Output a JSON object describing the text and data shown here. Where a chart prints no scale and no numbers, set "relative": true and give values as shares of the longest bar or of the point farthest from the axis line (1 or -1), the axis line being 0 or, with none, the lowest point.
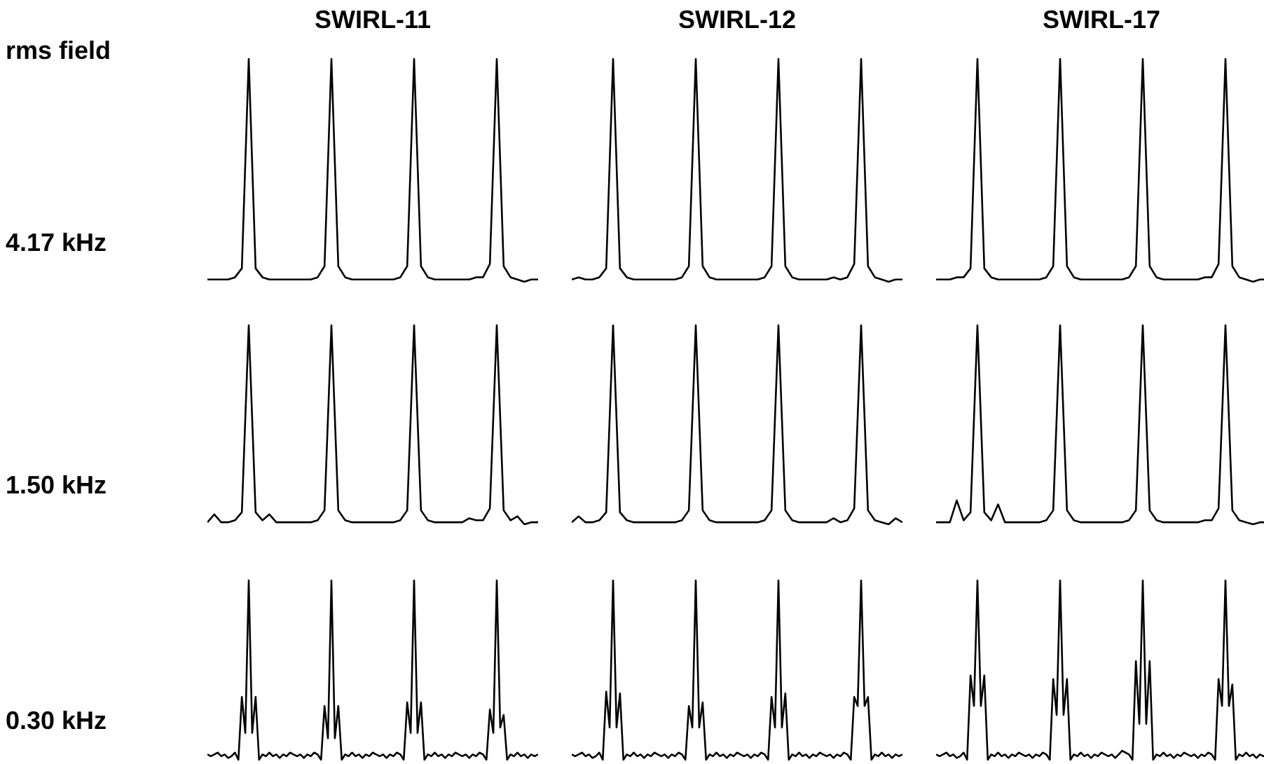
{
  "chart_data": [
    {
      "type": "line",
      "title": "SWIRL-11",
      "ylabel": "4.17 kHz",
      "annotations": [
        "rms field"
      ],
      "relative": true,
      "tick_labels": false,
      "color": "#000000",
      "categories": [
        null,
        null,
        null,
        null,
        null,
        null,
        null,
        null,
        null,
        null,
        null,
        null,
        null,
        null,
        null,
        null,
        null,
        null,
        null,
        null,
        null,
        null,
        null,
        null,
        null,
        null,
        null,
        null,
        null,
        null,
        null,
        null,
        null,
        null,
        null,
        null,
        null,
        null,
        null,
        null,
        null,
        null,
        null,
        null,
        null,
        null,
        null,
        null,
        null
      ],
      "values": [
        0.01,
        0.01,
        0.01,
        0.01,
        0.02,
        0.06,
        1,
        0.06,
        0.02,
        0.01,
        0.01,
        0.01,
        0.01,
        0.01,
        0.01,
        0.01,
        0.02,
        0.07,
        1,
        0.07,
        0.02,
        0.01,
        0.01,
        0.01,
        0.01,
        0.01,
        0.01,
        0.01,
        0.02,
        0.07,
        1,
        0.07,
        0.02,
        0.01,
        0.01,
        0.01,
        0.01,
        0.01,
        0.01,
        0.02,
        0.02,
        0.08,
        1,
        0.07,
        0.02,
        0.01,
        0,
        0.01,
        0.01
      ]
    },
    {
      "type": "line",
      "title": "SWIRL-12",
      "relative": true,
      "tick_labels": false,
      "color": "#000000",
      "categories": [
        null,
        null,
        null,
        null,
        null,
        null,
        null,
        null,
        null,
        null,
        null,
        null,
        null,
        null,
        null,
        null,
        null,
        null,
        null,
        null,
        null,
        null,
        null,
        null,
        null,
        null,
        null,
        null,
        null,
        null,
        null,
        null,
        null,
        null,
        null,
        null,
        null,
        null,
        null,
        null,
        null,
        null,
        null,
        null,
        null,
        null,
        null,
        null,
        null
      ],
      "values": [
        0.01,
        0.02,
        0.01,
        0.01,
        0.02,
        0.06,
        1,
        0.06,
        0.02,
        0.01,
        0.01,
        0.01,
        0.01,
        0.01,
        0.01,
        0.01,
        0.02,
        0.07,
        1,
        0.07,
        0.02,
        0.01,
        0.01,
        0.01,
        0.01,
        0.01,
        0.01,
        0.01,
        0.02,
        0.07,
        1,
        0.07,
        0.02,
        0.01,
        0.01,
        0.01,
        0.01,
        0.01,
        0.02,
        0.01,
        0.02,
        0.08,
        1,
        0.07,
        0.02,
        0.01,
        0,
        0.01,
        0.01
      ]
    },
    {
      "type": "line",
      "title": "SWIRL-17",
      "relative": true,
      "tick_labels": false,
      "color": "#000000",
      "categories": [
        null,
        null,
        null,
        null,
        null,
        null,
        null,
        null,
        null,
        null,
        null,
        null,
        null,
        null,
        null,
        null,
        null,
        null,
        null,
        null,
        null,
        null,
        null,
        null,
        null,
        null,
        null,
        null,
        null,
        null,
        null,
        null,
        null,
        null,
        null,
        null,
        null,
        null,
        null,
        null,
        null,
        null,
        null,
        null,
        null,
        null,
        null,
        null,
        null
      ],
      "values": [
        0.01,
        0.01,
        0.01,
        0.02,
        0.02,
        0.06,
        1,
        0.06,
        0.02,
        0.01,
        0.01,
        0.01,
        0.01,
        0.01,
        0.01,
        0.01,
        0.02,
        0.07,
        1,
        0.07,
        0.02,
        0.01,
        0.01,
        0.01,
        0.01,
        0.01,
        0.01,
        0.01,
        0.02,
        0.07,
        1,
        0.07,
        0.02,
        0.01,
        0.01,
        0.01,
        0.01,
        0.01,
        0.01,
        0.02,
        0.02,
        0.08,
        1,
        0.07,
        0.02,
        0.01,
        0,
        0.01,
        0.01
      ]
    },
    {
      "type": "line",
      "ylabel": "1.50 kHz",
      "relative": true,
      "tick_labels": false,
      "color": "#000000",
      "categories": [
        null,
        null,
        null,
        null,
        null,
        null,
        null,
        null,
        null,
        null,
        null,
        null,
        null,
        null,
        null,
        null,
        null,
        null,
        null,
        null,
        null,
        null,
        null,
        null,
        null,
        null,
        null,
        null,
        null,
        null,
        null,
        null,
        null,
        null,
        null,
        null,
        null,
        null,
        null,
        null,
        null,
        null,
        null,
        null,
        null,
        null,
        null,
        null,
        null
      ],
      "values": [
        0.01,
        0.05,
        0.01,
        0.01,
        0.02,
        0.06,
        1,
        0.06,
        0.02,
        0.05,
        0.01,
        0.01,
        0.01,
        0.01,
        0.01,
        0.01,
        0.02,
        0.07,
        1,
        0.07,
        0.02,
        0.01,
        0.01,
        0.01,
        0.01,
        0.01,
        0.01,
        0.01,
        0.02,
        0.07,
        1,
        0.07,
        0.02,
        0.01,
        0.01,
        0.01,
        0.01,
        0.01,
        0.03,
        0.02,
        0.02,
        0.08,
        1,
        0.07,
        0.02,
        0.04,
        0,
        0.01,
        0.01
      ]
    },
    {
      "type": "line",
      "relative": true,
      "tick_labels": false,
      "color": "#000000",
      "categories": [
        null,
        null,
        null,
        null,
        null,
        null,
        null,
        null,
        null,
        null,
        null,
        null,
        null,
        null,
        null,
        null,
        null,
        null,
        null,
        null,
        null,
        null,
        null,
        null,
        null,
        null,
        null,
        null,
        null,
        null,
        null,
        null,
        null,
        null,
        null,
        null,
        null,
        null,
        null,
        null,
        null,
        null,
        null,
        null,
        null,
        null,
        null,
        null,
        null
      ],
      "values": [
        0.01,
        0.04,
        0.01,
        0.01,
        0.02,
        0.06,
        1,
        0.06,
        0.02,
        0.01,
        0.01,
        0.01,
        0.01,
        0.01,
        0.01,
        0.01,
        0.02,
        0.07,
        1,
        0.07,
        0.02,
        0.01,
        0.01,
        0.01,
        0.01,
        0.01,
        0.01,
        0.01,
        0.02,
        0.07,
        1,
        0.07,
        0.02,
        0.01,
        0.01,
        0.01,
        0.01,
        0.01,
        0.03,
        0.01,
        0.02,
        0.08,
        1,
        0.07,
        0.02,
        0.01,
        0,
        0.03,
        0.01
      ]
    },
    {
      "type": "line",
      "relative": true,
      "tick_labels": false,
      "color": "#000000",
      "categories": [
        null,
        null,
        null,
        null,
        null,
        null,
        null,
        null,
        null,
        null,
        null,
        null,
        null,
        null,
        null,
        null,
        null,
        null,
        null,
        null,
        null,
        null,
        null,
        null,
        null,
        null,
        null,
        null,
        null,
        null,
        null,
        null,
        null,
        null,
        null,
        null,
        null,
        null,
        null,
        null,
        null,
        null,
        null,
        null,
        null,
        null,
        null,
        null,
        null
      ],
      "values": [
        0.01,
        0.01,
        0.01,
        0.12,
        0.02,
        0.06,
        1,
        0.06,
        0.02,
        0.1,
        0.01,
        0.01,
        0.01,
        0.01,
        0.01,
        0.01,
        0.02,
        0.07,
        1,
        0.07,
        0.02,
        0.01,
        0.01,
        0.01,
        0.01,
        0.01,
        0.01,
        0.01,
        0.02,
        0.07,
        1,
        0.07,
        0.02,
        0.01,
        0.01,
        0.01,
        0.01,
        0.01,
        0.01,
        0.02,
        0.02,
        0.08,
        1,
        0.07,
        0.02,
        0.01,
        0,
        0.01,
        0.01
      ]
    },
    {
      "type": "line",
      "ylabel": "0.30 kHz",
      "relative": true,
      "tick_labels": false,
      "color": "#000000",
      "categories": [
        null,
        null,
        null,
        null,
        null,
        null,
        null,
        null,
        null,
        null,
        null,
        null,
        null,
        null,
        null,
        null,
        null,
        null,
        null,
        null,
        null,
        null,
        null,
        null,
        null,
        null,
        null,
        null,
        null,
        null,
        null,
        null,
        null,
        null,
        null,
        null,
        null,
        null,
        null,
        null,
        null,
        null,
        null,
        null,
        null,
        null,
        null,
        null,
        null,
        null,
        null,
        null,
        null,
        null,
        null,
        null,
        null,
        null,
        null,
        null,
        null,
        null,
        null,
        null,
        null,
        null,
        null,
        null,
        null,
        null,
        null,
        null,
        null,
        null,
        null,
        null,
        null,
        null,
        null,
        null,
        null,
        null,
        null,
        null,
        null,
        null,
        null,
        null,
        null,
        null,
        null,
        null,
        null,
        null,
        null,
        null,
        null
      ],
      "values": [
        0.03,
        0.02,
        0.03,
        0.04,
        0.02,
        0.03,
        0.01,
        0.02,
        0.04,
        0,
        0.35,
        0.15,
        1,
        0.15,
        0.35,
        0,
        0.03,
        0.02,
        0.04,
        0.02,
        0.03,
        0.01,
        0.03,
        0.02,
        0.04,
        0.03,
        0.02,
        0.03,
        0.01,
        0.03,
        0.02,
        0.04,
        0.03,
        0,
        0.3,
        0.12,
        1,
        0.12,
        0.3,
        0,
        0.03,
        0.02,
        0.04,
        0.02,
        0.03,
        0.01,
        0.03,
        0.02,
        0.04,
        0.03,
        0.02,
        0.03,
        0.01,
        0.03,
        0.02,
        0.04,
        0.03,
        0,
        0.32,
        0.15,
        1,
        0.15,
        0.32,
        0,
        0.03,
        0.02,
        0.04,
        0.02,
        0.03,
        0.01,
        0.03,
        0.02,
        0.04,
        0.03,
        0.02,
        0.03,
        0.01,
        0.03,
        0.02,
        0.04,
        0.03,
        0,
        0.28,
        0.15,
        1,
        0.18,
        0.25,
        0,
        0.03,
        0.02,
        0.04,
        0.02,
        0.03,
        0.01,
        0.03,
        0.02,
        0.03
      ]
    },
    {
      "type": "line",
      "relative": true,
      "tick_labels": false,
      "color": "#000000",
      "categories": [
        null,
        null,
        null,
        null,
        null,
        null,
        null,
        null,
        null,
        null,
        null,
        null,
        null,
        null,
        null,
        null,
        null,
        null,
        null,
        null,
        null,
        null,
        null,
        null,
        null,
        null,
        null,
        null,
        null,
        null,
        null,
        null,
        null,
        null,
        null,
        null,
        null,
        null,
        null,
        null,
        null,
        null,
        null,
        null,
        null,
        null,
        null,
        null,
        null,
        null,
        null,
        null,
        null,
        null,
        null,
        null,
        null,
        null,
        null,
        null,
        null,
        null,
        null,
        null,
        null,
        null,
        null,
        null,
        null,
        null,
        null,
        null,
        null,
        null,
        null,
        null,
        null,
        null,
        null,
        null,
        null,
        null,
        null,
        null,
        null,
        null,
        null,
        null,
        null,
        null,
        null,
        null,
        null,
        null,
        null,
        null,
        null
      ],
      "values": [
        0.03,
        0.02,
        0.03,
        0.04,
        0.02,
        0.03,
        0.01,
        0.02,
        0.04,
        0,
        0.38,
        0.18,
        1,
        0.18,
        0.37,
        0,
        0.03,
        0.02,
        0.04,
        0.02,
        0.03,
        0.01,
        0.03,
        0.02,
        0.04,
        0.03,
        0.02,
        0.03,
        0.01,
        0.03,
        0.02,
        0.04,
        0.03,
        0,
        0.3,
        0.18,
        1,
        0.18,
        0.32,
        0,
        0.03,
        0.02,
        0.04,
        0.02,
        0.03,
        0.01,
        0.03,
        0.02,
        0.04,
        0.03,
        0.02,
        0.03,
        0.01,
        0.03,
        0.02,
        0.04,
        0.03,
        0,
        0.35,
        0.18,
        1,
        0.18,
        0.37,
        0,
        0.03,
        0.02,
        0.04,
        0.02,
        0.03,
        0.01,
        0.03,
        0.02,
        0.04,
        0.03,
        0.02,
        0.03,
        0.01,
        0.03,
        0.02,
        0.04,
        0.03,
        0,
        0.35,
        0.3,
        1,
        0.3,
        0.35,
        0,
        0.03,
        0.02,
        0.04,
        0.02,
        0.03,
        0.01,
        0.03,
        0.02,
        0.03
      ]
    },
    {
      "type": "line",
      "relative": true,
      "tick_labels": false,
      "color": "#000000",
      "categories": [
        null,
        null,
        null,
        null,
        null,
        null,
        null,
        null,
        null,
        null,
        null,
        null,
        null,
        null,
        null,
        null,
        null,
        null,
        null,
        null,
        null,
        null,
        null,
        null,
        null,
        null,
        null,
        null,
        null,
        null,
        null,
        null,
        null,
        null,
        null,
        null,
        null,
        null,
        null,
        null,
        null,
        null,
        null,
        null,
        null,
        null,
        null,
        null,
        null,
        null,
        null,
        null,
        null,
        null,
        null,
        null,
        null,
        null,
        null,
        null,
        null,
        null,
        null,
        null,
        null,
        null,
        null,
        null,
        null,
        null,
        null,
        null,
        null,
        null,
        null,
        null,
        null,
        null,
        null,
        null,
        null,
        null,
        null,
        null,
        null,
        null,
        null,
        null,
        null,
        null,
        null,
        null,
        null,
        null,
        null,
        null,
        null
      ],
      "values": [
        0.03,
        0.02,
        0.03,
        0.04,
        0.02,
        0.03,
        0.01,
        0.02,
        0.04,
        0,
        0.47,
        0.3,
        1,
        0.3,
        0.47,
        0,
        0.03,
        0.02,
        0.04,
        0.02,
        0.03,
        0.01,
        0.03,
        0.02,
        0.04,
        0.03,
        0.02,
        0.03,
        0.01,
        0.03,
        0.02,
        0.04,
        0.03,
        0,
        0.45,
        0.25,
        1,
        0.25,
        0.45,
        0,
        0.03,
        0.02,
        0.04,
        0.02,
        0.03,
        0.01,
        0.03,
        0.02,
        0.04,
        0.03,
        0.02,
        0.03,
        0.01,
        0.03,
        0.05,
        0.04,
        0.03,
        0,
        0.55,
        0.2,
        1,
        0.2,
        0.55,
        0,
        0.03,
        0.02,
        0.04,
        0.02,
        0.03,
        0.01,
        0.03,
        0.02,
        0.04,
        0.03,
        0.02,
        0.03,
        0.01,
        0.03,
        0.02,
        0.04,
        0.03,
        0,
        0.45,
        0.3,
        1,
        0.3,
        0.42,
        0,
        0.03,
        0.02,
        0.04,
        0.02,
        0.03,
        0.01,
        0.03,
        0.02,
        0.03
      ]
    }
  ]
}
